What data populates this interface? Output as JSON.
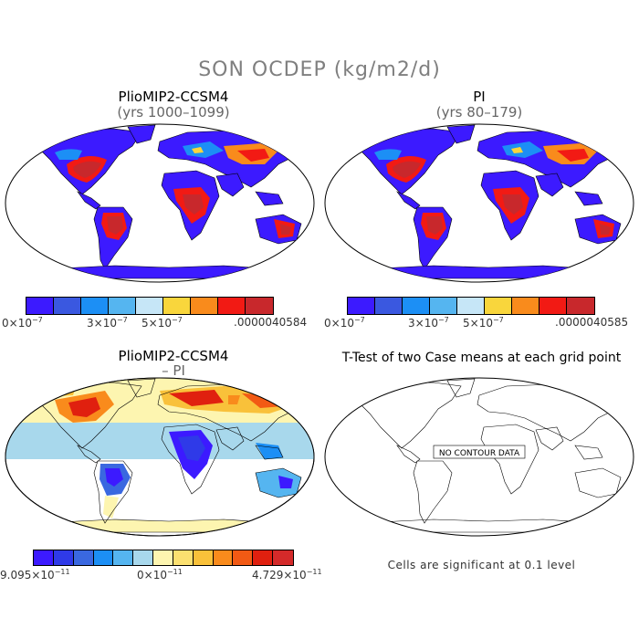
{
  "title": "SON OCDEP (kg/m2/d)",
  "panels": [
    {
      "title": "PlioMIP2-CCSM4",
      "subtitle": "(yrs 1000–1099)"
    },
    {
      "title": "PI",
      "subtitle": "(yrs 80–179)"
    },
    {
      "title": "PlioMIP2-CCSM4",
      "subtitle": "– PI"
    },
    {
      "title": "T-Test of two Case means at each grid point",
      "subtitle": ""
    }
  ],
  "no_data_label": "NO CONTOUR DATA",
  "significance_note": "Cells are significant at 0.1 level",
  "colorbars": [
    {
      "colors": [
        "#3c1aff",
        "#3a58e0",
        "#1c8ff5",
        "#55b5f0",
        "#c6e6f7",
        "#f9d63c",
        "#f98b1c",
        "#f21a14",
        "#c8282c"
      ],
      "labels": {
        "left_base": "0×10",
        "left_exp": "−7",
        "mid1_base": "3×10",
        "mid1_exp": "−7",
        "mid2_base": "5×10",
        "mid2_exp": "−7",
        "right": ".0000040584"
      }
    },
    {
      "colors": [
        "#3c1aff",
        "#3a58e0",
        "#1c8ff5",
        "#55b5f0",
        "#c6e6f7",
        "#f9d63c",
        "#f98b1c",
        "#f21a14",
        "#c8282c"
      ],
      "labels": {
        "left_base": "0×10",
        "left_exp": "−7",
        "mid1_base": "3×10",
        "mid1_exp": "−7",
        "mid2_base": "5×10",
        "mid2_exp": "−7",
        "right": ".0000040585"
      }
    },
    {
      "colors": [
        "#3c1aff",
        "#2f3ae8",
        "#3a68e0",
        "#1c8ff5",
        "#55b5f0",
        "#a8d8ec",
        "#fdf5b0",
        "#fbe070",
        "#f9c13a",
        "#f98b1c",
        "#f25a14",
        "#e0200f",
        "#d42a2a"
      ],
      "labels": {
        "left_base": "9.095×10",
        "left_exp": "−11",
        "mid_base": "0×10",
        "mid_exp": "−11",
        "right_base": "4.729×10",
        "right_exp": "−11"
      }
    }
  ],
  "map_colors": {
    "ocean": "#ffffff",
    "land_low": "#3c1aff",
    "land_mid": "#1c8ff5",
    "land_high": "#f21a14",
    "land_peak": "#c8282c",
    "land_warm": "#f9d63c",
    "diff_pos_high": "#e0200f",
    "diff_pos_mid": "#f98b1c",
    "diff_pos_low": "#fdf5b0",
    "diff_neg_low": "#a8d8ec",
    "diff_neg_mid": "#55b5f0",
    "diff_neg_high": "#3c1aff"
  }
}
